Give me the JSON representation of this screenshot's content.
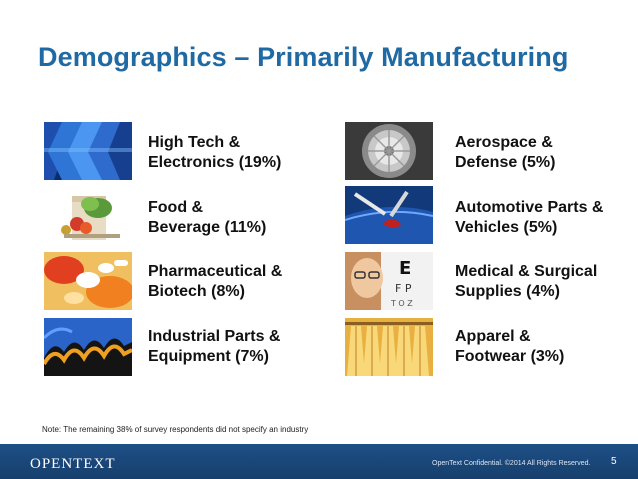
{
  "slide": {
    "title": "Demographics – Primarily Manufacturing",
    "industries": [
      {
        "line1": "High Tech &",
        "line2": "Electronics (19%)",
        "icon": "high-tech-icon",
        "share_percent": 19
      },
      {
        "line1": "Food &",
        "line2": "Beverage (11%)",
        "icon": "food-icon",
        "share_percent": 11
      },
      {
        "line1": "Pharmaceutical &",
        "line2": "Biotech (8%)",
        "icon": "pharmaceutical-icon",
        "share_percent": 8
      },
      {
        "line1": "Industrial Parts &",
        "line2": "Equipment (7%)",
        "icon": "industrial-gear-icon",
        "share_percent": 7
      },
      {
        "line1": "Aerospace &",
        "line2": "Defense (5%)",
        "icon": "aerospace-icon",
        "share_percent": 5
      },
      {
        "line1": "Automotive Parts &",
        "line2": "Vehicles (5%)",
        "icon": "automotive-icon",
        "share_percent": 5
      },
      {
        "line1": "Medical & Surgical",
        "line2": "Supplies (4%)",
        "icon": "medical-icon",
        "share_percent": 4
      },
      {
        "line1": "Apparel &",
        "line2": "Footwear (3%)",
        "icon": "apparel-icon",
        "share_percent": 3
      }
    ],
    "note": "Note: The remaining  38% of survey respondents did not specify an industry"
  },
  "footer": {
    "logo_text": "OPENTEXT",
    "copyright": "OpenText Confidential. ©2014 All Rights Reserved.",
    "page_number": "5"
  },
  "colors": {
    "title": "#1f6aa3",
    "footer_bar": "#1d4f86",
    "label_text": "#111111"
  }
}
